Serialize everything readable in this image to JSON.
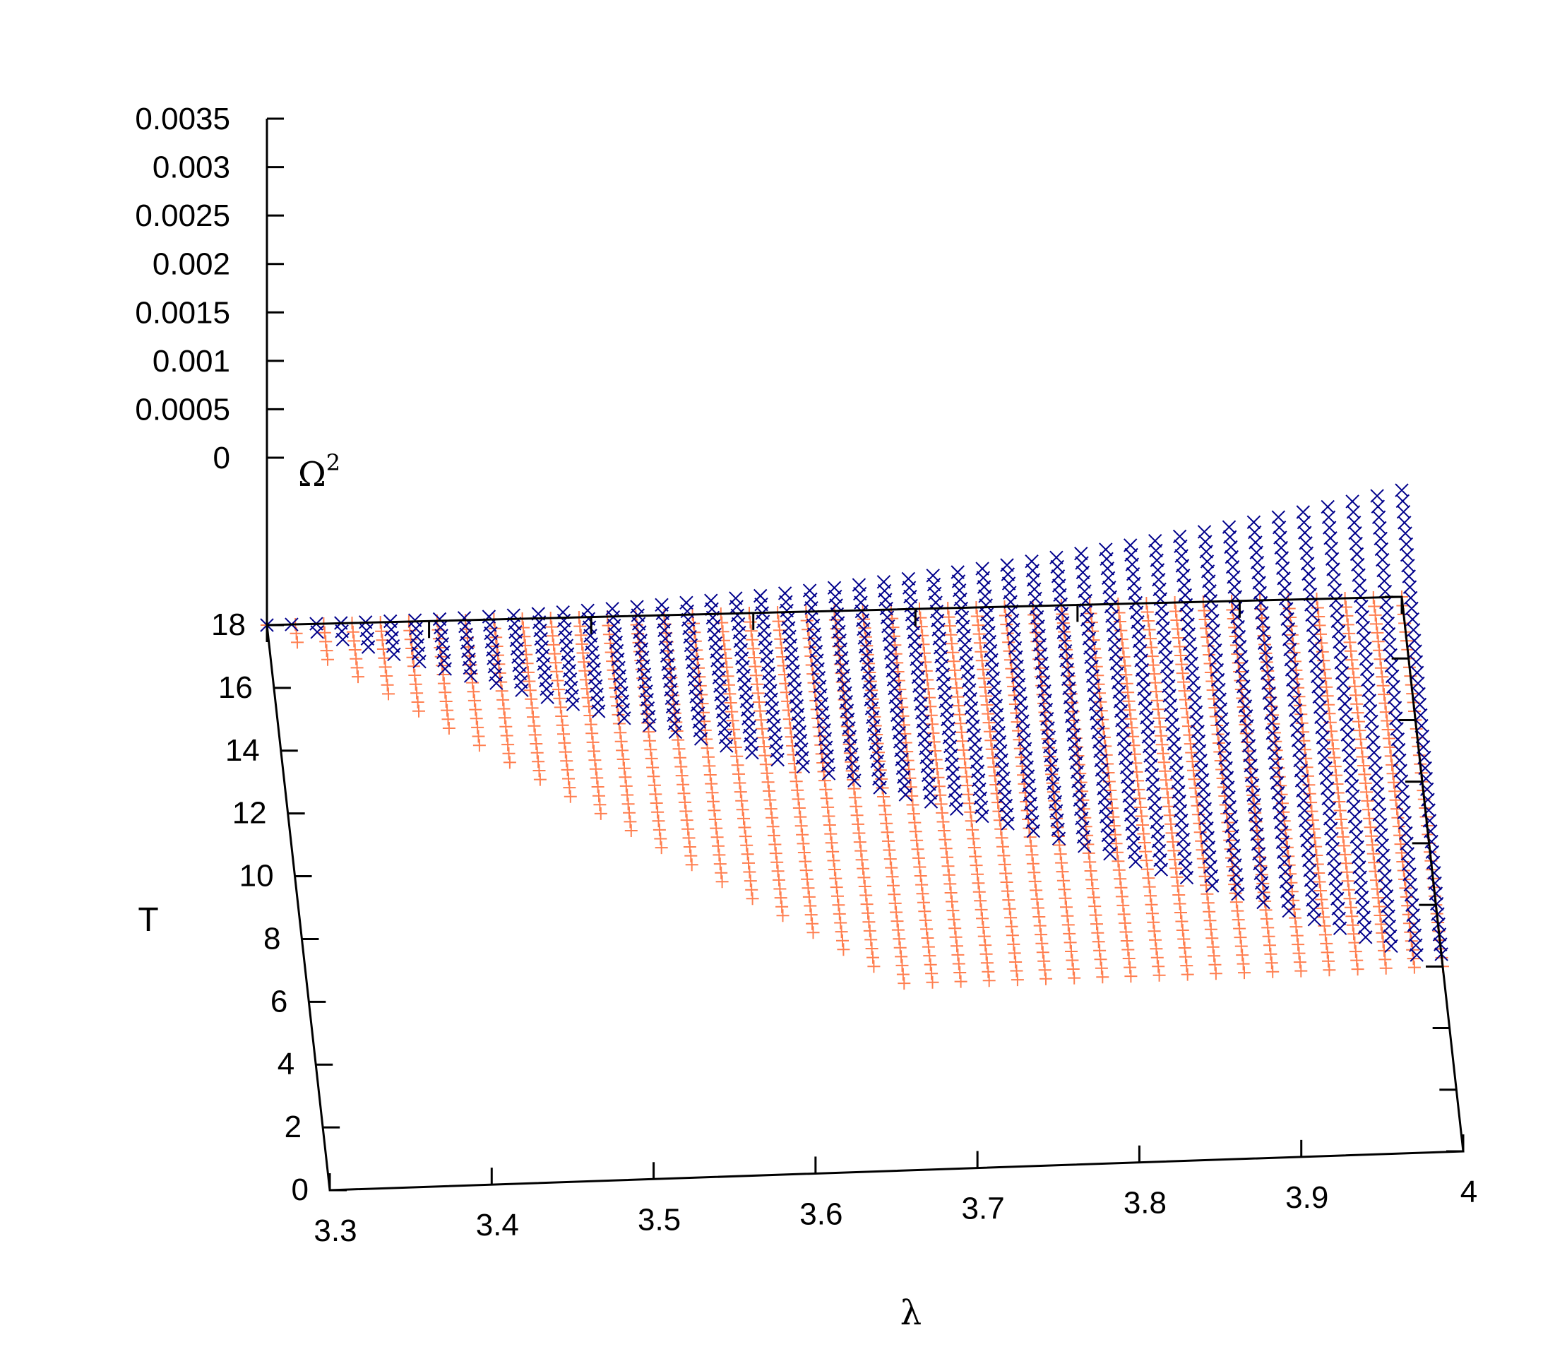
{
  "chart_data": {
    "type": "scatter",
    "title": "",
    "xlabel": "λ",
    "ylabel": "T",
    "zlabel": "Ω",
    "zlabel_sup": "2",
    "xlim": [
      3.3,
      4.0
    ],
    "ylim": [
      0,
      18
    ],
    "zlim": [
      0,
      0.0035
    ],
    "x_ticks": [
      "3.3",
      "3.4",
      "3.5",
      "3.6",
      "3.7",
      "3.8",
      "3.9",
      "4"
    ],
    "y_ticks": [
      "0",
      "2",
      "4",
      "6",
      "8",
      "10",
      "12",
      "14",
      "16",
      "18"
    ],
    "z_ticks": [
      "0",
      "0.0005",
      "0.001",
      "0.0015",
      "0.002",
      "0.0025",
      "0.003",
      "0.0035"
    ],
    "grid": false,
    "legend": "none",
    "series": [
      {
        "marker": "plus",
        "color": "#ff7f50",
        "description_region": {
          "lambda_range": [
            3.3,
            4.0
          ],
          "T_range": [
            6,
            18
          ],
          "boundary_lambda_at_T18": 3.3,
          "boundary_lambda_at_T6": 3.66
        }
      },
      {
        "marker": "cross",
        "color": "#00008b",
        "description_region": {
          "lambda_range": [
            3.3,
            4.0
          ],
          "T_range": [
            6.4,
            18
          ],
          "boundary_lambda_at_T18": 3.3,
          "boundary_lambda_at_T6": 3.98,
          "omega2_max": 0.0011
        }
      }
    ]
  }
}
